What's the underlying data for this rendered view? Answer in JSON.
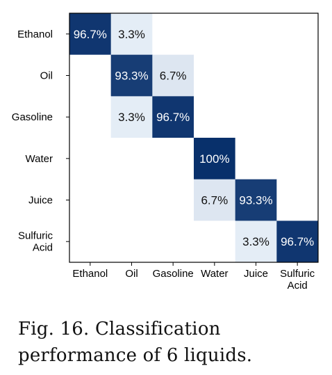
{
  "chart_data": {
    "type": "heatmap",
    "title": "",
    "xlabel": "",
    "ylabel": "",
    "rows": [
      [
        "Ethanol"
      ],
      [
        "Oil"
      ],
      [
        "Gasoline"
      ],
      [
        "Water"
      ],
      [
        "Juice"
      ],
      [
        "Sulfuric",
        "Acid"
      ]
    ],
    "columns": [
      [
        "Ethanol"
      ],
      [
        "Oil"
      ],
      [
        "Gasoline"
      ],
      [
        "Water"
      ],
      [
        "Juice"
      ],
      [
        "Sulfuric",
        "Acid"
      ]
    ],
    "values": [
      [
        96.7,
        3.3,
        0,
        0,
        0,
        0
      ],
      [
        0,
        93.3,
        6.7,
        0,
        0,
        0
      ],
      [
        0,
        3.3,
        96.7,
        0,
        0,
        0
      ],
      [
        0,
        0,
        0,
        100,
        0,
        0
      ],
      [
        0,
        0,
        0,
        6.7,
        93.3,
        0
      ],
      [
        0,
        0,
        0,
        0,
        3.3,
        96.7
      ]
    ],
    "cell_labels": [
      [
        "96.7%",
        "3.3%",
        "",
        "",
        "",
        ""
      ],
      [
        "",
        "93.3%",
        "6.7%",
        "",
        "",
        ""
      ],
      [
        "",
        "3.3%",
        "96.7%",
        "",
        "",
        ""
      ],
      [
        "",
        "",
        "",
        "100%",
        "",
        ""
      ],
      [
        "",
        "",
        "",
        "6.7%",
        "93.3%",
        ""
      ],
      [
        "",
        "",
        "",
        "",
        "3.3%",
        "96.7%"
      ]
    ],
    "value_range": [
      0,
      100
    ],
    "colormap": "Blues",
    "colors": {
      "high": "#08306b",
      "low_tint": "#ecf3fb",
      "zero": "#ffffff",
      "light_text": "#ffffff",
      "dark_text": "#111111"
    },
    "grid": false,
    "legend": "none"
  },
  "caption": "Fig. 16.  Classification performance of 6 liquids."
}
